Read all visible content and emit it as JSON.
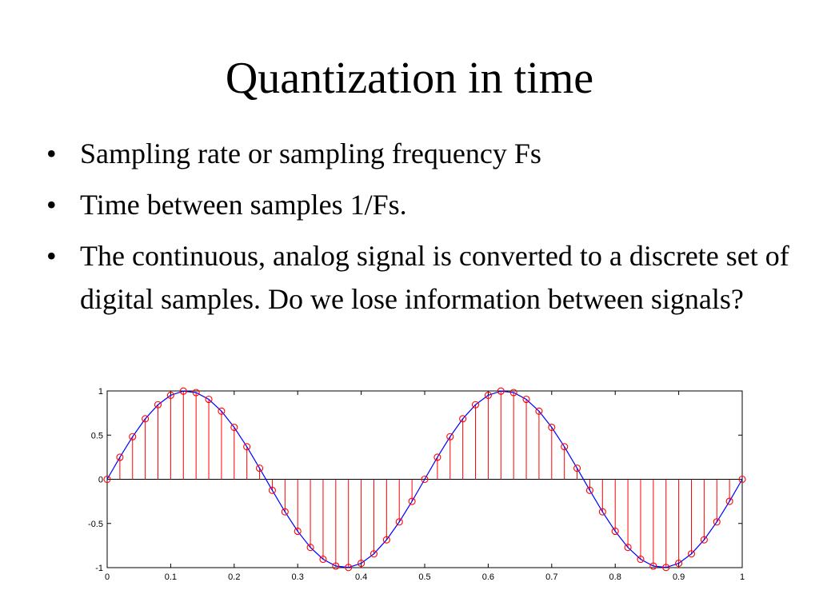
{
  "slide": {
    "title": "Quantization in time",
    "bullets": [
      "Sampling rate or sampling frequency Fs",
      "Time between samples 1/Fs.",
      "The continuous, analog signal is converted to a discrete set of digital samples. Do we lose information between signals?"
    ],
    "bullet_glyph": "•"
  },
  "chart_data": {
    "type": "line",
    "title": "",
    "xlabel": "",
    "ylabel": "",
    "xlim": [
      0,
      1
    ],
    "ylim": [
      -1,
      1
    ],
    "xticks": [
      "0",
      "0.1",
      "0.2",
      "0.3",
      "0.4",
      "0.5",
      "0.6",
      "0.7",
      "0.8",
      "0.9",
      "1"
    ],
    "yticks": [
      "1",
      "0.5",
      "0",
      "-0.5",
      "-1"
    ],
    "grid": false,
    "legend": "none",
    "colors": {
      "curve": "#0000ff",
      "stems": "#ff0000",
      "markers": "#ff0000",
      "axes": "#000000"
    },
    "series": [
      {
        "kind": "continuous",
        "style": "line",
        "x": [
          0,
          0.02,
          0.04,
          0.06,
          0.08,
          0.1,
          0.12,
          0.14,
          0.16,
          0.18,
          0.2,
          0.22,
          0.24,
          0.26,
          0.28,
          0.3,
          0.32,
          0.34,
          0.36,
          0.38,
          0.4,
          0.42,
          0.44,
          0.46,
          0.48,
          0.5,
          0.52,
          0.54,
          0.56,
          0.58,
          0.6,
          0.62,
          0.64,
          0.66,
          0.68,
          0.7,
          0.72,
          0.74,
          0.76,
          0.78,
          0.8,
          0.82,
          0.84,
          0.86,
          0.88,
          0.9,
          0.92,
          0.94,
          0.96,
          0.98,
          1.0
        ],
        "y": [
          0,
          0.249,
          0.482,
          0.685,
          0.844,
          0.951,
          0.998,
          0.982,
          0.905,
          0.771,
          0.588,
          0.368,
          0.125,
          -0.125,
          -0.368,
          -0.588,
          -0.771,
          -0.905,
          -0.982,
          -0.998,
          -0.951,
          -0.844,
          -0.685,
          -0.482,
          -0.249,
          0,
          0.249,
          0.482,
          0.685,
          0.844,
          0.951,
          0.998,
          0.982,
          0.905,
          0.771,
          0.588,
          0.368,
          0.125,
          -0.125,
          -0.368,
          -0.588,
          -0.771,
          -0.905,
          -0.982,
          -0.998,
          -0.951,
          -0.844,
          -0.685,
          -0.482,
          -0.249,
          0
        ]
      },
      {
        "kind": "samples",
        "style": "stem",
        "x": [
          0,
          0.02,
          0.04,
          0.06,
          0.08,
          0.1,
          0.12,
          0.14,
          0.16,
          0.18,
          0.2,
          0.22,
          0.24,
          0.26,
          0.28,
          0.3,
          0.32,
          0.34,
          0.36,
          0.38,
          0.4,
          0.42,
          0.44,
          0.46,
          0.48,
          0.5,
          0.52,
          0.54,
          0.56,
          0.58,
          0.6,
          0.62,
          0.64,
          0.66,
          0.68,
          0.7,
          0.72,
          0.74,
          0.76,
          0.78,
          0.8,
          0.82,
          0.84,
          0.86,
          0.88,
          0.9,
          0.92,
          0.94,
          0.96,
          0.98,
          1.0
        ],
        "y": [
          0,
          0.249,
          0.482,
          0.685,
          0.844,
          0.951,
          0.998,
          0.982,
          0.905,
          0.771,
          0.588,
          0.368,
          0.125,
          -0.125,
          -0.368,
          -0.588,
          -0.771,
          -0.905,
          -0.982,
          -0.998,
          -0.951,
          -0.844,
          -0.685,
          -0.482,
          -0.249,
          0,
          0.249,
          0.482,
          0.685,
          0.844,
          0.951,
          0.998,
          0.982,
          0.905,
          0.771,
          0.588,
          0.368,
          0.125,
          -0.125,
          -0.368,
          -0.588,
          -0.771,
          -0.905,
          -0.982,
          -0.998,
          -0.951,
          -0.844,
          -0.685,
          -0.482,
          -0.249,
          0
        ]
      }
    ]
  }
}
